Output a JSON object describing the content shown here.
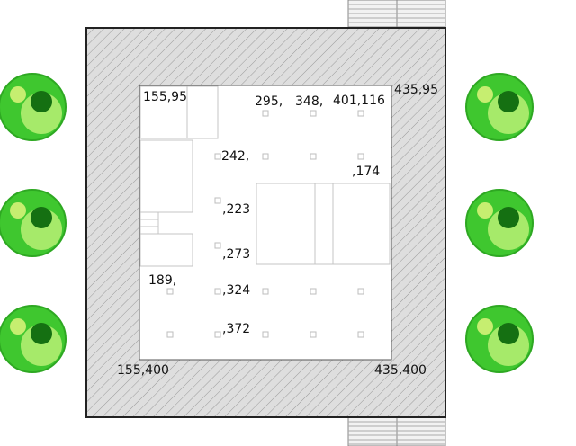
{
  "colors": {
    "wall_fill": "#dedede",
    "wall_hatch": "#9a9a9a",
    "wall_outline": "#222222",
    "floor": "#ffffff",
    "fixture_stroke": "#c4c4c4",
    "marker_stroke": "#bdbdbd",
    "tree_outer": "#3fc72f",
    "tree_ring": "#2ea822",
    "tree_mid": "#a6ea6a",
    "tree_small": "#c6ee70",
    "tree_dark": "#157012"
  },
  "labels": {
    "corner_top_left": "155,95",
    "corner_top_right": "435,95",
    "corner_bottom_left": "155,400",
    "corner_bottom_right": "435,400",
    "top_295": "295,",
    "top_348": "348,",
    "top_401": "401,116",
    "left_242": "242,",
    "right_174": ",174",
    "left_223": ",223",
    "left_273": ",273",
    "left_189": "189,",
    "left_324": ",324",
    "left_372": ",372"
  },
  "trees": [
    {
      "name": "tree-left-top"
    },
    {
      "name": "tree-left-middle"
    },
    {
      "name": "tree-left-bottom"
    },
    {
      "name": "tree-right-top"
    },
    {
      "name": "tree-right-middle"
    },
    {
      "name": "tree-right-bottom"
    }
  ]
}
